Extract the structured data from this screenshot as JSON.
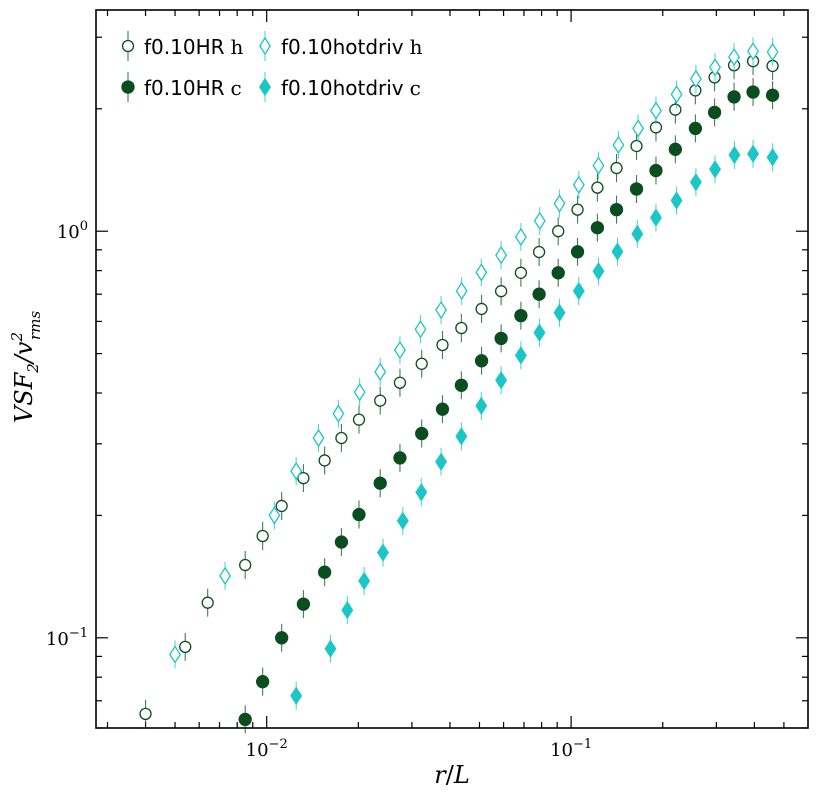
{
  "chart_data": {
    "type": "scatter",
    "xlabel": "r/L",
    "ylabel": "VSF2/v2rms",
    "xscale": "log",
    "yscale": "log",
    "xlim": [
      0.00275,
      0.6
    ],
    "ylim": [
      0.06,
      3.5
    ],
    "xticks": [
      {
        "value": 0.01,
        "base": "10",
        "exp": "−2"
      },
      {
        "value": 0.1,
        "base": "10",
        "exp": "−1"
      }
    ],
    "yticks": [
      {
        "value": 0.1,
        "base": "10",
        "exp": "−1"
      },
      {
        "value": 1.0,
        "base": "10",
        "exp": "0"
      }
    ],
    "grid": false,
    "legend_position": "top-left",
    "series": [
      {
        "name": "f0.10HR",
        "suffix": "h",
        "marker": "circle-open",
        "color": "#0a4d1e",
        "points": [
          [
            0.004,
            0.065
          ],
          [
            0.0054,
            0.095
          ],
          [
            0.0064,
            0.122
          ],
          [
            0.0085,
            0.151
          ],
          [
            0.0097,
            0.178
          ],
          [
            0.0112,
            0.211
          ],
          [
            0.0132,
            0.247
          ],
          [
            0.0155,
            0.273
          ],
          [
            0.0176,
            0.31
          ],
          [
            0.0201,
            0.344
          ],
          [
            0.0236,
            0.383
          ],
          [
            0.0274,
            0.424
          ],
          [
            0.0323,
            0.472
          ],
          [
            0.0378,
            0.525
          ],
          [
            0.0436,
            0.578
          ],
          [
            0.0508,
            0.644
          ],
          [
            0.0589,
            0.712
          ],
          [
            0.0684,
            0.79
          ],
          [
            0.0785,
            0.889
          ],
          [
            0.0907,
            1.0
          ],
          [
            0.105,
            1.13
          ],
          [
            0.122,
            1.28
          ],
          [
            0.141,
            1.43
          ],
          [
            0.164,
            1.62
          ],
          [
            0.19,
            1.8
          ],
          [
            0.22,
            1.99
          ],
          [
            0.256,
            2.22
          ],
          [
            0.296,
            2.39
          ],
          [
            0.343,
            2.56
          ],
          [
            0.396,
            2.62
          ],
          [
            0.459,
            2.55
          ]
        ]
      },
      {
        "name": "f0.10HR",
        "suffix": "c",
        "marker": "circle-filled",
        "color": "#0a4d1e",
        "points": [
          [
            0.0085,
            0.063
          ],
          [
            0.0097,
            0.078
          ],
          [
            0.0112,
            0.1
          ],
          [
            0.0132,
            0.121
          ],
          [
            0.0155,
            0.145
          ],
          [
            0.0176,
            0.172
          ],
          [
            0.0201,
            0.201
          ],
          [
            0.0236,
            0.24
          ],
          [
            0.0274,
            0.277
          ],
          [
            0.0323,
            0.318
          ],
          [
            0.0378,
            0.365
          ],
          [
            0.0436,
            0.418
          ],
          [
            0.0508,
            0.48
          ],
          [
            0.0589,
            0.545
          ],
          [
            0.0684,
            0.62
          ],
          [
            0.0785,
            0.7
          ],
          [
            0.0907,
            0.79
          ],
          [
            0.105,
            0.89
          ],
          [
            0.122,
            1.02
          ],
          [
            0.141,
            1.13
          ],
          [
            0.164,
            1.27
          ],
          [
            0.19,
            1.41
          ],
          [
            0.22,
            1.59
          ],
          [
            0.256,
            1.79
          ],
          [
            0.296,
            1.96
          ],
          [
            0.343,
            2.14
          ],
          [
            0.396,
            2.2
          ],
          [
            0.459,
            2.16
          ]
        ]
      },
      {
        "name": "f0.10hotdriv",
        "suffix": "h",
        "marker": "diamond-open",
        "color": "#1ac6c6",
        "points": [
          [
            0.005,
            0.091
          ],
          [
            0.0073,
            0.142
          ],
          [
            0.0106,
            0.2
          ],
          [
            0.0125,
            0.257
          ],
          [
            0.0148,
            0.31
          ],
          [
            0.0172,
            0.356
          ],
          [
            0.0202,
            0.402
          ],
          [
            0.0236,
            0.451
          ],
          [
            0.0274,
            0.51
          ],
          [
            0.032,
            0.574
          ],
          [
            0.0374,
            0.64
          ],
          [
            0.0437,
            0.713
          ],
          [
            0.0507,
            0.792
          ],
          [
            0.0589,
            0.873
          ],
          [
            0.0684,
            0.968
          ],
          [
            0.0789,
            1.06
          ],
          [
            0.0916,
            1.17
          ],
          [
            0.106,
            1.3
          ],
          [
            0.123,
            1.45
          ],
          [
            0.143,
            1.63
          ],
          [
            0.166,
            1.79
          ],
          [
            0.19,
            1.98
          ],
          [
            0.222,
            2.17
          ],
          [
            0.257,
            2.37
          ],
          [
            0.297,
            2.53
          ],
          [
            0.343,
            2.68
          ],
          [
            0.396,
            2.77
          ],
          [
            0.459,
            2.76
          ]
        ]
      },
      {
        "name": "f0.10hotdriv",
        "suffix": "c",
        "marker": "diamond-filled",
        "color": "#1ac6c6",
        "points": [
          [
            0.0125,
            0.072
          ],
          [
            0.0162,
            0.094
          ],
          [
            0.0184,
            0.117
          ],
          [
            0.0209,
            0.138
          ],
          [
            0.0241,
            0.162
          ],
          [
            0.028,
            0.194
          ],
          [
            0.0322,
            0.228
          ],
          [
            0.0374,
            0.271
          ],
          [
            0.0436,
            0.313
          ],
          [
            0.0507,
            0.372
          ],
          [
            0.0589,
            0.43
          ],
          [
            0.0684,
            0.495
          ],
          [
            0.0787,
            0.563
          ],
          [
            0.0916,
            0.63
          ],
          [
            0.106,
            0.713
          ],
          [
            0.123,
            0.797
          ],
          [
            0.142,
            0.891
          ],
          [
            0.165,
            0.985
          ],
          [
            0.19,
            1.08
          ],
          [
            0.222,
            1.19
          ],
          [
            0.257,
            1.32
          ],
          [
            0.297,
            1.42
          ],
          [
            0.344,
            1.54
          ],
          [
            0.396,
            1.55
          ],
          [
            0.459,
            1.52
          ]
        ]
      }
    ]
  }
}
